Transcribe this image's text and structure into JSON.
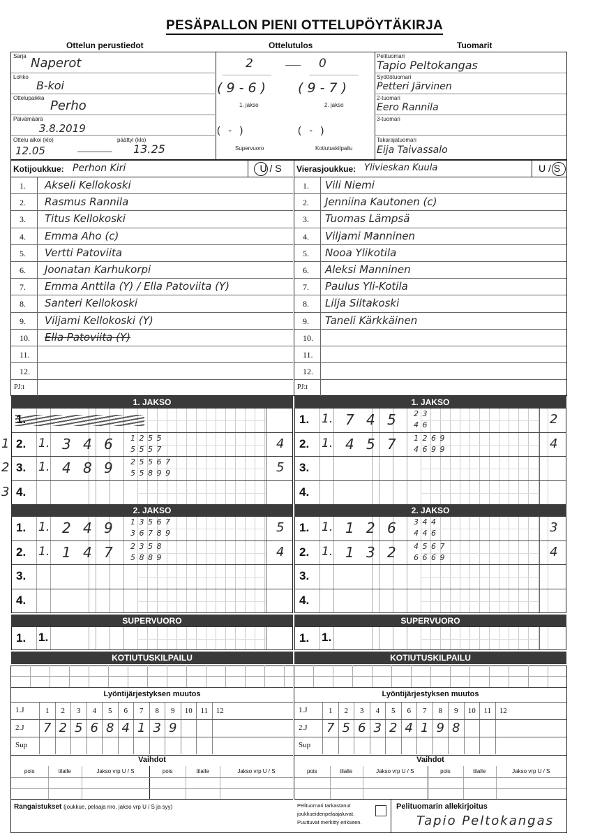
{
  "title": "PESÄPALLON PIENI OTTELUPÖYTÄKIRJA",
  "sections": {
    "basic": "Ottelun perustiedot",
    "result": "Ottelutulos",
    "referees": "Tuomarit"
  },
  "basic": {
    "series_label": "Sarja",
    "series": "Naperot",
    "group_label": "Lohko",
    "group": "B-koi",
    "venue_label": "Ottelupaikka",
    "venue": "Perho",
    "date_label": "Päivämäärä",
    "date": "3.8.2019",
    "start_label": "Ottelu alkoi (klo)",
    "start": "12.05",
    "end_label": "päättyi (klo)",
    "end": "13.25"
  },
  "result": {
    "home": "2",
    "away": "0",
    "p1": "( 9 - 6 )",
    "p2": "( 9 - 7 )",
    "p1_label": "1. jakso",
    "p2_label": "2. jakso",
    "sv": "(   -   )",
    "kt": "(   -   )",
    "sv_label": "Supervuoro",
    "kt_label": "Kotiutuskilpailu"
  },
  "referees": {
    "main_label": "Pelituomari",
    "main": "Tapio Peltokangas",
    "pitch_label": "Syöttötuomari",
    "pitch": "Petteri Järvinen",
    "second_label": "2-tuomari",
    "second": "Eero Rannila",
    "third_label": "3-tuomari",
    "third": "",
    "back_label": "Takarajatuomari",
    "back": "Eija Taivassalo"
  },
  "home": {
    "label": "Kotijoukkue:",
    "name": "Perhon Kiri",
    "us": "U / S",
    "circled": "U",
    "players": [
      "Akseli Kellokoski",
      "Rasmus Rannila",
      "Titus Kellokoski",
      "Emma Aho (c)",
      "Vertti Patoviita",
      "Joonatan Karhukorpi",
      "Emma Anttila (Y) / Ella Patoviita (Y)",
      "Santeri Kellokoski",
      "Viljami Kellokoski (Y)",
      "Ella Patoviita (Y)",
      "",
      ""
    ]
  },
  "away": {
    "label": "Vierasjoukkue:",
    "name": "Ylivieskan Kuula",
    "us": "U / S",
    "circled": "S",
    "players": [
      "Vili Niemi",
      "Jenniina Kautonen (c)",
      "Tuomas Lämpsä",
      "Viljami Manninen",
      "Nooa Ylikotila",
      "Aleksi Manninen",
      "Paulus Yli-Kotila",
      "Lilja Siltakoski",
      "Taneli Kärkkäinen",
      "",
      "",
      ""
    ]
  },
  "row_numbers": [
    "1.",
    "2.",
    "3.",
    "4.",
    "5.",
    "6.",
    "7.",
    "8.",
    "9.",
    "10.",
    "11.",
    "12.",
    "PJ:t"
  ],
  "bars": {
    "j1": "1. JAKSO",
    "j2": "2. JAKSO",
    "sv": "SUPERVUORO",
    "kt": "KOTIUTUSKILPAILU"
  },
  "innings": {
    "home_j1": [
      {
        "margin": "",
        "no": "1.",
        "a": "",
        "b": "",
        "c": "",
        "d": "",
        "top": "",
        "bot": "",
        "score": "",
        "struck": true
      },
      {
        "margin": "1",
        "no": "2.",
        "a": "1.",
        "b": "3",
        "c": "4",
        "d": "6",
        "top": "1 2 5 5",
        "bot": "5 5 5 7",
        "score": "4"
      },
      {
        "margin": "2",
        "no": "3.",
        "a": "1.",
        "b": "4",
        "c": "8",
        "d": "9",
        "top": "2 5 5 6 7",
        "bot": "5 5 8 9 9",
        "score": "5"
      },
      {
        "margin": "3",
        "no": "4.",
        "a": "",
        "b": "",
        "c": "",
        "d": "",
        "top": "",
        "bot": "",
        "score": ""
      }
    ],
    "away_j1": [
      {
        "no": "1.",
        "a": "1.",
        "b": "7",
        "c": "4",
        "d": "5",
        "top": "2 3",
        "bot": "4 6",
        "score": "2"
      },
      {
        "no": "2.",
        "a": "1.",
        "b": "4",
        "c": "5",
        "d": "7",
        "top": "1 2 6 9",
        "bot": "4 6 9 9",
        "score": "4"
      },
      {
        "no": "3.",
        "a": "",
        "b": "",
        "c": "",
        "d": "",
        "top": "",
        "bot": "",
        "score": ""
      },
      {
        "no": "4.",
        "a": "",
        "b": "",
        "c": "",
        "d": "",
        "top": "",
        "bot": "",
        "score": ""
      }
    ],
    "home_j2": [
      {
        "no": "1.",
        "a": "1.",
        "b": "2",
        "c": "4",
        "d": "9",
        "top": "1 3 5 6 7",
        "bot": "3 6 7 8 9",
        "score": "5"
      },
      {
        "no": "2.",
        "a": "1.",
        "b": "1",
        "c": "4",
        "d": "7",
        "top": "2 3 5 8",
        "bot": "5 8 8 9",
        "score": "4"
      },
      {
        "no": "3.",
        "a": "",
        "b": "",
        "c": "",
        "d": "",
        "top": "",
        "bot": "",
        "score": ""
      },
      {
        "no": "4.",
        "a": "",
        "b": "",
        "c": "",
        "d": "",
        "top": "",
        "bot": "",
        "score": ""
      }
    ],
    "away_j2": [
      {
        "no": "1.",
        "a": "1.",
        "b": "1",
        "c": "2",
        "d": "6",
        "top": "3 4 4",
        "bot": "4 4 6",
        "score": "3"
      },
      {
        "no": "2.",
        "a": "1.",
        "b": "1",
        "c": "3",
        "d": "2",
        "top": "4 5 6 7",
        "bot": "6 6 6 9",
        "score": "4"
      },
      {
        "no": "3.",
        "a": "",
        "b": "",
        "c": "",
        "d": "",
        "top": "",
        "bot": "",
        "score": ""
      },
      {
        "no": "4.",
        "a": "",
        "b": "",
        "c": "",
        "d": "",
        "top": "",
        "bot": "",
        "score": ""
      }
    ],
    "home_sv": [
      {
        "no": "1.",
        "a": "1.",
        "b": "",
        "c": "",
        "d": "",
        "top": "",
        "bot": "",
        "score": ""
      }
    ],
    "away_sv": [
      {
        "no": "1.",
        "a": "1.",
        "b": "",
        "c": "",
        "d": "",
        "top": "",
        "bot": "",
        "score": ""
      }
    ]
  },
  "lineup": {
    "title": "Lyöntijärjestyksen muutos",
    "rows": [
      "1.J",
      "2.J",
      "Sup"
    ],
    "positions": [
      "1",
      "2",
      "3",
      "4",
      "5",
      "6",
      "7",
      "8",
      "9",
      "10",
      "11",
      "12"
    ],
    "home_2j": [
      "7",
      "2",
      "5",
      "6",
      "8",
      "4",
      "1",
      "3",
      "9",
      "",
      "",
      ""
    ],
    "away_2j": [
      "7",
      "5",
      "6",
      "3",
      "2",
      "4",
      "1",
      "9",
      "8",
      "",
      "",
      ""
    ]
  },
  "subs": {
    "title": "Vaihdot",
    "headers": [
      "pois",
      "tilalle",
      "Jakso vrp U / S",
      "pois",
      "tilalle",
      "Jakso vrp U / S"
    ]
  },
  "penalties": {
    "label": "Rangaistukset",
    "hint": "(joukkue, pelaaja nro, jakso vrp U / S ja syy)"
  },
  "check": {
    "l1": "Pelituomari tarkastanut",
    "l2": "joukkueidenpelaajaluvat.",
    "l3": "Puuttuvat merkitty erikseen."
  },
  "signature": {
    "label": "Pelituomarin allekirjoitus",
    "value": "Tapio Peltokangas"
  }
}
